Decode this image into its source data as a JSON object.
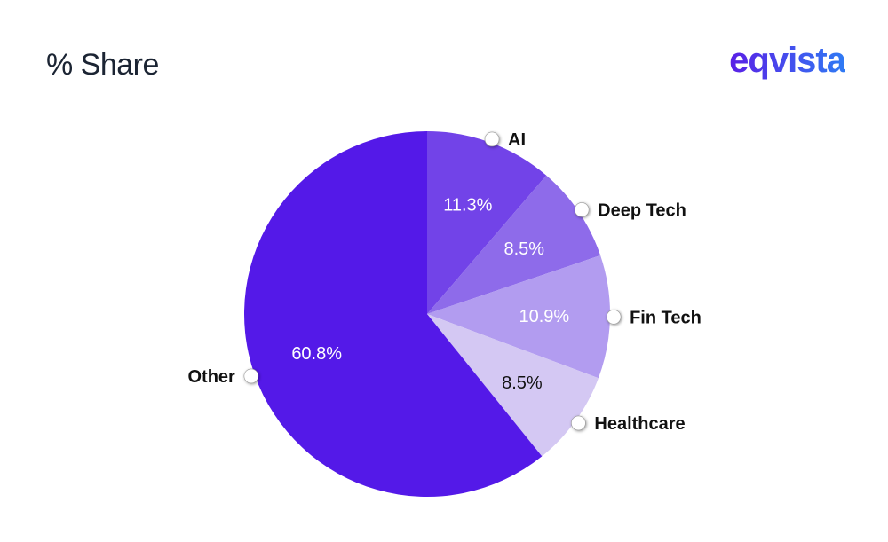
{
  "title": "% Share",
  "logo": "eqvista",
  "chart_data": {
    "type": "pie",
    "title": "% Share",
    "start_angle_deg": 0,
    "direction": "clockwise",
    "slices": [
      {
        "label": "AI",
        "value": 11.3,
        "display": "11.3%",
        "color": "#7243e8",
        "text_color": "#ffffff"
      },
      {
        "label": "Deep Tech",
        "value": 8.5,
        "display": "8.5%",
        "color": "#8e6bea",
        "text_color": "#ffffff"
      },
      {
        "label": "Fin Tech",
        "value": 10.9,
        "display": "10.9%",
        "color": "#b29cf0",
        "text_color": "#ffffff"
      },
      {
        "label": "Healthcare",
        "value": 8.5,
        "display": "8.5%",
        "color": "#d4c8f3",
        "text_color": "#111111"
      },
      {
        "label": "Other",
        "value": 60.8,
        "display": "60.8%",
        "color": "#5419e8",
        "text_color": "#ffffff"
      }
    ]
  }
}
